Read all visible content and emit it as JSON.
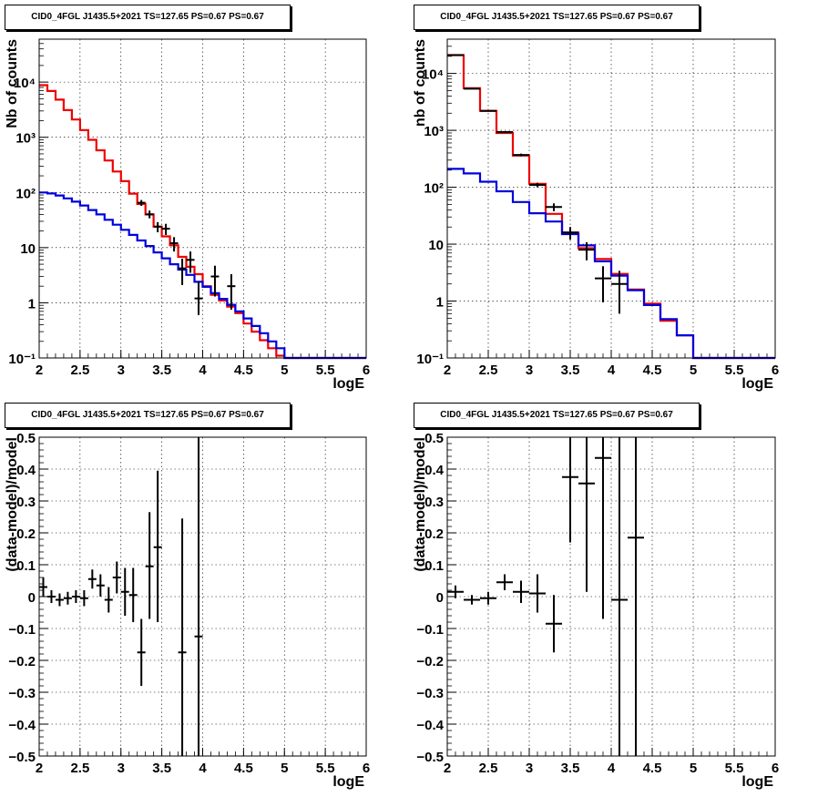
{
  "colors": {
    "data": "#000000",
    "model_total": "#ee0000",
    "model_background": "#0000dd",
    "grid": "#000000"
  },
  "chart_data": [
    {
      "type": "line",
      "title": "CID0_4FGL J1435.5+2021 TS=127.65 PS=0.67 PS=0.67",
      "xlabel": "logE",
      "ylabel": "Nb of counts",
      "xlim": [
        2,
        6
      ],
      "ylim": [
        0.1,
        60000
      ],
      "yscale": "log",
      "grid": true,
      "x_ticks": [
        "2",
        "2.5",
        "3",
        "3.5",
        "4",
        "4.5",
        "5",
        "5.5",
        "6"
      ],
      "y_ticks": [
        {
          "v": 0.1,
          "label": "10⁻¹"
        },
        {
          "v": 1,
          "label": "1"
        },
        {
          "v": 10,
          "label": "10"
        },
        {
          "v": 100,
          "label": "10²"
        },
        {
          "v": 1000,
          "label": "10³"
        },
        {
          "v": 10000,
          "label": "10⁴"
        }
      ],
      "bin_edges": [
        2,
        2.1,
        2.2,
        2.3,
        2.4,
        2.5,
        2.6,
        2.7,
        2.8,
        2.9,
        3,
        3.1,
        3.2,
        3.3,
        3.4,
        3.5,
        3.6,
        3.7,
        3.8,
        3.9,
        4,
        4.1,
        4.2,
        4.3,
        4.4,
        4.5,
        4.6,
        4.7,
        4.8,
        4.9,
        5,
        5.1,
        5.2,
        5.3,
        5.4,
        5.5,
        5.6,
        5.7,
        5.8,
        5.9,
        6
      ],
      "series": [
        {
          "color_key": "model_total",
          "values": [
            8800,
            6900,
            4800,
            3100,
            2100,
            1350,
            900,
            580,
            380,
            240,
            160,
            95,
            62,
            40,
            24,
            16,
            11,
            6.8,
            4.5,
            3.3,
            2.0,
            1.4,
            1.1,
            0.85,
            0.65,
            0.42,
            0.3,
            0.21,
            0.15,
            0.11,
            0.1,
            0.1,
            0.1,
            0.1,
            0.1,
            0.1,
            0.1,
            0.1,
            0.1,
            0.1
          ]
        },
        {
          "color_key": "model_background",
          "values": [
            100,
            96,
            88,
            78,
            68,
            58,
            48,
            40,
            32,
            26,
            21,
            17,
            13.5,
            10.7,
            8.2,
            6.4,
            5.0,
            4.0,
            3.2,
            2.4,
            1.95,
            1.5,
            1.18,
            0.92,
            0.7,
            0.52,
            0.38,
            0.28,
            0.2,
            0.15,
            0.1,
            0.1,
            0.1,
            0.1,
            0.1,
            0.1,
            0.1,
            0.1,
            0.1,
            0.1
          ]
        }
      ],
      "points": [
        {
          "x": 3.25,
          "y": 65,
          "lo": 57,
          "hi": 73
        },
        {
          "x": 3.35,
          "y": 40,
          "lo": 34,
          "hi": 47
        },
        {
          "x": 3.45,
          "y": 24,
          "lo": 19,
          "hi": 29
        },
        {
          "x": 3.55,
          "y": 22,
          "lo": 17,
          "hi": 27
        },
        {
          "x": 3.65,
          "y": 12,
          "lo": 8.5,
          "hi": 15.5
        },
        {
          "x": 3.75,
          "y": 4.2,
          "lo": 2.1,
          "hi": 6.3
        },
        {
          "x": 3.85,
          "y": 6,
          "lo": 3.5,
          "hi": 8.5
        },
        {
          "x": 3.95,
          "y": 1.2,
          "lo": 0.6,
          "hi": 2.4
        },
        {
          "x": 4.15,
          "y": 3,
          "lo": 1.3,
          "hi": 4.7
        },
        {
          "x": 4.35,
          "y": 2,
          "lo": 0.75,
          "hi": 3.3
        }
      ]
    },
    {
      "type": "line",
      "title": "CID0_4FGL J1435.5+2021 TS=127.65 PS=0.67 PS=0.67",
      "xlabel": "logE",
      "ylabel": "nb of counts",
      "xlim": [
        2,
        6
      ],
      "ylim": [
        0.1,
        40000
      ],
      "yscale": "log",
      "grid": true,
      "x_ticks": [
        "2",
        "2.5",
        "3",
        "3.5",
        "4",
        "4.5",
        "5",
        "5.5",
        "6"
      ],
      "y_ticks": [
        {
          "v": 0.1,
          "label": "10⁻¹"
        },
        {
          "v": 1,
          "label": "1"
        },
        {
          "v": 10,
          "label": "10"
        },
        {
          "v": 100,
          "label": "10²"
        },
        {
          "v": 1000,
          "label": "10³"
        },
        {
          "v": 10000,
          "label": "10⁴"
        }
      ],
      "bin_edges": [
        2,
        2.2,
        2.4,
        2.6,
        2.8,
        3,
        3.2,
        3.4,
        3.6,
        3.8,
        4,
        4.2,
        4.4,
        4.6,
        4.8,
        5,
        5.2,
        5.4,
        5.6,
        5.8,
        6
      ],
      "series": [
        {
          "color_key": "model_total",
          "values": [
            21000,
            5500,
            2200,
            900,
            360,
            115,
            34,
            16,
            8.5,
            5.5,
            3.0,
            1.6,
            0.9,
            0.45,
            0.25,
            0.1,
            0.1,
            0.1,
            0.1,
            0.1
          ]
        },
        {
          "color_key": "model_background",
          "values": [
            210,
            175,
            125,
            85,
            55,
            35,
            25,
            15,
            9.5,
            5.0,
            2.8,
            1.55,
            0.85,
            0.48,
            0.25,
            0.1,
            0.1,
            0.1,
            0.1,
            0.1
          ]
        }
      ],
      "points": [
        {
          "x": 2.1,
          "y": 21000,
          "lo": 20800,
          "hi": 21200
        },
        {
          "x": 2.3,
          "y": 5400,
          "lo": 5300,
          "hi": 5500
        },
        {
          "x": 2.5,
          "y": 2200,
          "lo": 2150,
          "hi": 2250
        },
        {
          "x": 2.7,
          "y": 930,
          "lo": 900,
          "hi": 960
        },
        {
          "x": 2.9,
          "y": 370,
          "lo": 350,
          "hi": 390
        },
        {
          "x": 3.1,
          "y": 110,
          "lo": 100,
          "hi": 120
        },
        {
          "x": 3.3,
          "y": 45,
          "lo": 38,
          "hi": 52
        },
        {
          "x": 3.5,
          "y": 16,
          "lo": 12,
          "hi": 20
        },
        {
          "x": 3.7,
          "y": 8,
          "lo": 5.2,
          "hi": 10.8
        },
        {
          "x": 3.9,
          "y": 2.5,
          "lo": 0.95,
          "hi": 4.1
        },
        {
          "x": 4.1,
          "y": 2.0,
          "lo": 0.6,
          "hi": 3.4
        }
      ]
    },
    {
      "type": "scatter",
      "title": "CID0_4FGL J1435.5+2021 TS=127.65 PS=0.67 PS=0.67",
      "xlabel": "logE",
      "ylabel": "(data-model)/model",
      "xlim": [
        2,
        6
      ],
      "ylim": [
        -0.5,
        0.5
      ],
      "grid": true,
      "x_ticks": [
        "2",
        "2.5",
        "3",
        "3.5",
        "4",
        "4.5",
        "5",
        "5.5",
        "6"
      ],
      "y_ticks": [
        {
          "v": -0.5,
          "label": "−0.5"
        },
        {
          "v": -0.4,
          "label": "−0.4"
        },
        {
          "v": -0.3,
          "label": "−0.3"
        },
        {
          "v": -0.2,
          "label": "−0.2"
        },
        {
          "v": -0.1,
          "label": "−0.1"
        },
        {
          "v": 0,
          "label": "0"
        },
        {
          "v": 0.1,
          "label": "0.1"
        },
        {
          "v": 0.2,
          "label": "0.2"
        },
        {
          "v": 0.3,
          "label": "0.3"
        },
        {
          "v": 0.4,
          "label": "0.4"
        },
        {
          "v": 0.5,
          "label": "0.5"
        }
      ],
      "points": [
        {
          "x": 2.05,
          "y": 0.03,
          "lo": 0.0,
          "hi": 0.06,
          "xerr": 0.05
        },
        {
          "x": 2.15,
          "y": 0.0,
          "lo": -0.02,
          "hi": 0.02,
          "xerr": 0.05
        },
        {
          "x": 2.25,
          "y": -0.01,
          "lo": -0.03,
          "hi": 0.01,
          "xerr": 0.05
        },
        {
          "x": 2.35,
          "y": -0.005,
          "lo": -0.025,
          "hi": 0.015,
          "xerr": 0.05
        },
        {
          "x": 2.45,
          "y": 0.0,
          "lo": -0.02,
          "hi": 0.02,
          "xerr": 0.05
        },
        {
          "x": 2.55,
          "y": -0.005,
          "lo": -0.03,
          "hi": 0.02,
          "xerr": 0.05
        },
        {
          "x": 2.65,
          "y": 0.055,
          "lo": 0.025,
          "hi": 0.085,
          "xerr": 0.05
        },
        {
          "x": 2.75,
          "y": 0.035,
          "lo": 0.0,
          "hi": 0.07,
          "xerr": 0.05
        },
        {
          "x": 2.85,
          "y": -0.01,
          "lo": -0.05,
          "hi": 0.03,
          "xerr": 0.05
        },
        {
          "x": 2.95,
          "y": 0.06,
          "lo": 0.01,
          "hi": 0.11,
          "xerr": 0.05
        },
        {
          "x": 3.05,
          "y": 0.015,
          "lo": -0.06,
          "hi": 0.09,
          "xerr": 0.05
        },
        {
          "x": 3.15,
          "y": 0.005,
          "lo": -0.08,
          "hi": 0.09,
          "xerr": 0.05
        },
        {
          "x": 3.25,
          "y": -0.175,
          "lo": -0.28,
          "hi": -0.07,
          "xerr": 0.05
        },
        {
          "x": 3.35,
          "y": 0.095,
          "lo": -0.07,
          "hi": 0.265,
          "xerr": 0.05
        },
        {
          "x": 3.45,
          "y": 0.155,
          "lo": -0.08,
          "hi": 0.395,
          "xerr": 0.05
        },
        {
          "x": 3.75,
          "y": -0.175,
          "lo": -0.5,
          "hi": 0.245,
          "xerr": 0.05
        },
        {
          "x": 3.95,
          "y": -0.125,
          "lo": -0.5,
          "hi": 0.5,
          "xerr": 0.05
        }
      ]
    },
    {
      "type": "scatter",
      "title": "CID0_4FGL J1435.5+2021 TS=127.65 PS=0.67 PS=0.67",
      "xlabel": "logE",
      "ylabel": "(data-model)/model",
      "xlim": [
        2,
        6
      ],
      "ylim": [
        -0.5,
        0.5
      ],
      "grid": true,
      "x_ticks": [
        "2",
        "2.5",
        "3",
        "3.5",
        "4",
        "4.5",
        "5",
        "5.5",
        "6"
      ],
      "y_ticks": [
        {
          "v": -0.5,
          "label": "−0.5"
        },
        {
          "v": -0.4,
          "label": "−0.4"
        },
        {
          "v": -0.3,
          "label": "−0.3"
        },
        {
          "v": -0.2,
          "label": "−0.2"
        },
        {
          "v": -0.1,
          "label": "−0.1"
        },
        {
          "v": 0,
          "label": "0"
        },
        {
          "v": 0.1,
          "label": "0.1"
        },
        {
          "v": 0.2,
          "label": "0.2"
        },
        {
          "v": 0.3,
          "label": "0.3"
        },
        {
          "v": 0.4,
          "label": "0.4"
        },
        {
          "v": 0.5,
          "label": "0.5"
        }
      ],
      "points": [
        {
          "x": 2.1,
          "y": 0.015,
          "lo": -0.005,
          "hi": 0.035,
          "xerr": 0.1
        },
        {
          "x": 2.3,
          "y": -0.01,
          "lo": -0.025,
          "hi": 0.005,
          "xerr": 0.1
        },
        {
          "x": 2.5,
          "y": -0.005,
          "lo": -0.025,
          "hi": 0.015,
          "xerr": 0.1
        },
        {
          "x": 2.7,
          "y": 0.045,
          "lo": 0.02,
          "hi": 0.07,
          "xerr": 0.1
        },
        {
          "x": 2.9,
          "y": 0.015,
          "lo": -0.02,
          "hi": 0.05,
          "xerr": 0.1
        },
        {
          "x": 3.1,
          "y": 0.01,
          "lo": -0.05,
          "hi": 0.07,
          "xerr": 0.1
        },
        {
          "x": 3.3,
          "y": -0.085,
          "lo": -0.175,
          "hi": 0.005,
          "xerr": 0.1
        },
        {
          "x": 3.5,
          "y": 0.375,
          "lo": 0.17,
          "hi": 0.5,
          "xerr": 0.1
        },
        {
          "x": 3.7,
          "y": 0.355,
          "lo": 0.015,
          "hi": 0.5,
          "xerr": 0.1
        },
        {
          "x": 3.9,
          "y": 0.435,
          "lo": -0.07,
          "hi": 0.5,
          "xerr": 0.1
        },
        {
          "x": 4.1,
          "y": -0.01,
          "lo": -0.5,
          "hi": 0.5,
          "xerr": 0.1
        },
        {
          "x": 4.3,
          "y": 0.185,
          "lo": -0.5,
          "hi": 0.5,
          "xerr": 0.1
        }
      ]
    }
  ]
}
